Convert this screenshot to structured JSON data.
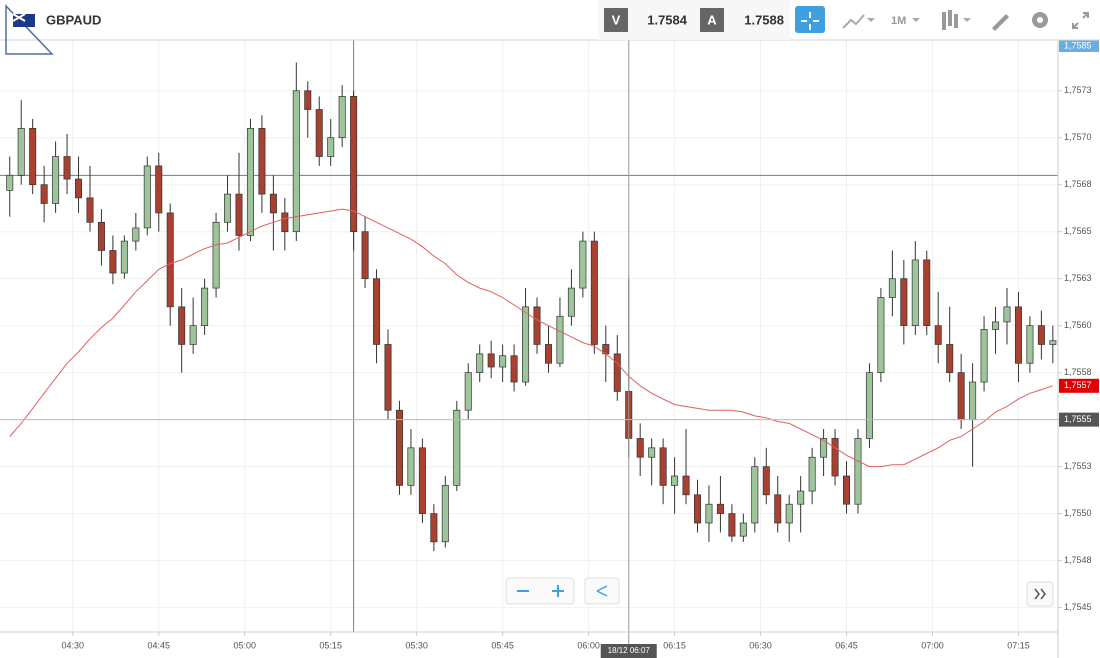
{
  "toolbar": {
    "symbol": "GBPAUD",
    "bid_label": "V",
    "bid": "1.7584",
    "ask_label": "A",
    "ask": "1.7588",
    "timeframe": "1M"
  },
  "chart_data": {
    "type": "candlestick",
    "x": [
      19,
      21,
      23,
      25,
      27,
      29,
      31,
      33,
      35,
      37,
      39,
      41,
      43,
      45,
      47,
      49,
      51,
      53,
      55,
      57,
      59,
      61,
      63,
      65,
      67,
      69,
      71,
      73,
      75,
      77,
      79,
      81,
      83,
      85,
      87,
      89,
      91,
      93,
      95,
      97,
      99,
      101,
      103,
      105,
      107,
      109,
      111,
      113,
      115,
      117,
      119,
      121,
      123,
      125,
      127,
      129,
      131,
      133,
      135,
      137,
      139,
      141,
      143,
      145,
      147,
      149,
      151,
      153,
      155,
      157,
      159,
      161,
      163,
      165,
      167,
      169,
      171,
      173,
      175,
      177,
      179,
      181,
      183,
      185,
      187,
      189,
      191,
      193,
      195,
      197,
      199,
      201
    ],
    "candles": [
      [
        1.75672,
        1.7569,
        1.75658,
        1.7568
      ],
      [
        1.7568,
        1.7572,
        1.75675,
        1.75705
      ],
      [
        1.75705,
        1.7571,
        1.7567,
        1.75675
      ],
      [
        1.75675,
        1.75685,
        1.75655,
        1.75665
      ],
      [
        1.75665,
        1.75698,
        1.7566,
        1.7569
      ],
      [
        1.7569,
        1.75702,
        1.7567,
        1.75678
      ],
      [
        1.75678,
        1.7569,
        1.7566,
        1.75668
      ],
      [
        1.75668,
        1.75685,
        1.7565,
        1.75655
      ],
      [
        1.75655,
        1.75662,
        1.75632,
        1.7564
      ],
      [
        1.7564,
        1.75648,
        1.75622,
        1.75628
      ],
      [
        1.75628,
        1.75648,
        1.75625,
        1.75645
      ],
      [
        1.75645,
        1.7566,
        1.7564,
        1.75652
      ],
      [
        1.75652,
        1.7569,
        1.75648,
        1.75685
      ],
      [
        1.75685,
        1.75692,
        1.7565,
        1.7566
      ],
      [
        1.7566,
        1.75665,
        1.756,
        1.7561
      ],
      [
        1.7561,
        1.7562,
        1.75575,
        1.7559
      ],
      [
        1.7559,
        1.75615,
        1.75585,
        1.756
      ],
      [
        1.756,
        1.75625,
        1.75595,
        1.7562
      ],
      [
        1.7562,
        1.7566,
        1.75615,
        1.75655
      ],
      [
        1.75655,
        1.7568,
        1.7565,
        1.7567
      ],
      [
        1.7567,
        1.75692,
        1.7564,
        1.75648
      ],
      [
        1.75648,
        1.7571,
        1.75645,
        1.75705
      ],
      [
        1.75705,
        1.75712,
        1.7566,
        1.7567
      ],
      [
        1.7567,
        1.7568,
        1.7564,
        1.7566
      ],
      [
        1.7566,
        1.75668,
        1.7564,
        1.7565
      ],
      [
        1.7565,
        1.7574,
        1.75645,
        1.75725
      ],
      [
        1.75725,
        1.7573,
        1.757,
        1.75715
      ],
      [
        1.75715,
        1.75722,
        1.75685,
        1.7569
      ],
      [
        1.7569,
        1.7571,
        1.75685,
        1.757
      ],
      [
        1.757,
        1.75728,
        1.75695,
        1.75722
      ],
      [
        1.75722,
        1.75725,
        1.7564,
        1.7565
      ],
      [
        1.7565,
        1.75658,
        1.7562,
        1.75625
      ],
      [
        1.75625,
        1.7563,
        1.7558,
        1.7559
      ],
      [
        1.7559,
        1.75598,
        1.7555,
        1.75555
      ],
      [
        1.75555,
        1.7556,
        1.7551,
        1.75515
      ],
      [
        1.75515,
        1.75545,
        1.7551,
        1.75535
      ],
      [
        1.75535,
        1.7554,
        1.75495,
        1.755
      ],
      [
        1.755,
        1.75505,
        1.7548,
        1.75485
      ],
      [
        1.75485,
        1.7552,
        1.75482,
        1.75515
      ],
      [
        1.75515,
        1.7556,
        1.75512,
        1.75555
      ],
      [
        1.75555,
        1.7558,
        1.7555,
        1.75575
      ],
      [
        1.75575,
        1.7559,
        1.7557,
        1.75585
      ],
      [
        1.75585,
        1.75592,
        1.75572,
        1.75578
      ],
      [
        1.75578,
        1.7559,
        1.7557,
        1.75584
      ],
      [
        1.75584,
        1.7559,
        1.75565,
        1.7557
      ],
      [
        1.7557,
        1.7562,
        1.75568,
        1.7561
      ],
      [
        1.7561,
        1.75615,
        1.75585,
        1.7559
      ],
      [
        1.7559,
        1.756,
        1.75575,
        1.7558
      ],
      [
        1.7558,
        1.75615,
        1.75578,
        1.75605
      ],
      [
        1.75605,
        1.7563,
        1.756,
        1.7562
      ],
      [
        1.7562,
        1.7565,
        1.75615,
        1.75645
      ],
      [
        1.75645,
        1.7565,
        1.75585,
        1.7559
      ],
      [
        1.7559,
        1.756,
        1.7557,
        1.75585
      ],
      [
        1.75585,
        1.75595,
        1.7556,
        1.75565
      ],
      [
        1.75565,
        1.75625,
        1.7553,
        1.7554
      ],
      [
        1.7554,
        1.75548,
        1.7552,
        1.7553
      ],
      [
        1.7553,
        1.7554,
        1.75515,
        1.75535
      ],
      [
        1.75535,
        1.7554,
        1.75505,
        1.75515
      ],
      [
        1.75515,
        1.7553,
        1.755,
        1.7552
      ],
      [
        1.7552,
        1.75545,
        1.75505,
        1.7551
      ],
      [
        1.7551,
        1.75518,
        1.7549,
        1.75495
      ],
      [
        1.75495,
        1.75515,
        1.75485,
        1.75505
      ],
      [
        1.75505,
        1.7552,
        1.7549,
        1.755
      ],
      [
        1.755,
        1.75505,
        1.75485,
        1.75488
      ],
      [
        1.75488,
        1.755,
        1.75485,
        1.75495
      ],
      [
        1.75495,
        1.7553,
        1.7549,
        1.75525
      ],
      [
        1.75525,
        1.75535,
        1.75505,
        1.7551
      ],
      [
        1.7551,
        1.7552,
        1.7549,
        1.75495
      ],
      [
        1.75495,
        1.7551,
        1.75485,
        1.75505
      ],
      [
        1.75505,
        1.7552,
        1.7549,
        1.75512
      ],
      [
        1.75512,
        1.75535,
        1.75505,
        1.7553
      ],
      [
        1.7553,
        1.75545,
        1.7552,
        1.7554
      ],
      [
        1.7554,
        1.75545,
        1.75515,
        1.7552
      ],
      [
        1.7552,
        1.75528,
        1.755,
        1.75505
      ],
      [
        1.75505,
        1.75545,
        1.755,
        1.7554
      ],
      [
        1.7554,
        1.7558,
        1.75535,
        1.75575
      ],
      [
        1.75575,
        1.7562,
        1.7557,
        1.75615
      ],
      [
        1.75615,
        1.7564,
        1.75605,
        1.75625
      ],
      [
        1.75625,
        1.75635,
        1.7559,
        1.756
      ],
      [
        1.756,
        1.75645,
        1.75595,
        1.75635
      ],
      [
        1.75635,
        1.7564,
        1.75595,
        1.756
      ],
      [
        1.756,
        1.75618,
        1.7558,
        1.7559
      ],
      [
        1.7559,
        1.7561,
        1.7557,
        1.75575
      ],
      [
        1.75575,
        1.75585,
        1.75545,
        1.7555
      ],
      [
        1.7555,
        1.7558,
        1.75525,
        1.7557
      ],
      [
        1.7557,
        1.75605,
        1.75565,
        1.75598
      ],
      [
        1.75598,
        1.7561,
        1.75585,
        1.75602
      ],
      [
        1.75602,
        1.7562,
        1.7559,
        1.7561
      ],
      [
        1.7561,
        1.75618,
        1.7557,
        1.7558
      ],
      [
        1.7558,
        1.75605,
        1.75575,
        1.756
      ],
      [
        1.756,
        1.75608,
        1.75582,
        1.7559
      ],
      [
        1.7559,
        1.756,
        1.7558,
        1.75592
      ]
    ],
    "up_color": "#9dc49b",
    "down_color": "#a8412f",
    "ma": {
      "color": "#e06060",
      "values": [
        1.75541,
        1.75548,
        1.75556,
        1.75564,
        1.75572,
        1.7558,
        1.75586,
        1.75593,
        1.75599,
        1.75604,
        1.75611,
        1.75618,
        1.75624,
        1.7563,
        1.75633,
        1.75635,
        1.75638,
        1.75641,
        1.75643,
        1.75644,
        1.75647,
        1.7565,
        1.75653,
        1.75655,
        1.75657,
        1.75658,
        1.75659,
        1.7566,
        1.75661,
        1.75662,
        1.75661,
        1.75658,
        1.75655,
        1.75652,
        1.75649,
        1.75646,
        1.75642,
        1.75637,
        1.75633,
        1.75627,
        1.75623,
        1.7562,
        1.75618,
        1.75615,
        1.75611,
        1.75607,
        1.75603,
        1.756,
        1.75597,
        1.75594,
        1.75591,
        1.75589,
        1.75585,
        1.7558,
        1.75573,
        1.75568,
        1.75564,
        1.75561,
        1.75558,
        1.75557,
        1.75556,
        1.75555,
        1.75555,
        1.75555,
        1.75554,
        1.75552,
        1.75551,
        1.75549,
        1.75548,
        1.75545,
        1.75542,
        1.75539,
        1.75535,
        1.75531,
        1.75528,
        1.75525,
        1.75525,
        1.75526,
        1.75526,
        1.75529,
        1.75532,
        1.75535,
        1.75539,
        1.75541,
        1.75545,
        1.75549,
        1.75554,
        1.75557,
        1.75561,
        1.75564,
        1.75566,
        1.75568
      ]
    },
    "xlim": [
      17.3,
      201.9
    ],
    "xticks": [
      {
        "value": 30,
        "label": "04:30"
      },
      {
        "value": 45,
        "label": "04:45"
      },
      {
        "value": 60,
        "label": "05:00"
      },
      {
        "value": 75,
        "label": "05:15"
      },
      {
        "value": 90,
        "label": "05:30"
      },
      {
        "value": 105,
        "label": "05:45"
      },
      {
        "value": 120,
        "label": "06:00"
      },
      {
        "value": 135,
        "label": "06:15"
      },
      {
        "value": 150,
        "label": "06:30"
      },
      {
        "value": 165,
        "label": "06:45"
      },
      {
        "value": 180,
        "label": "07:00"
      },
      {
        "value": 195,
        "label": "07:15"
      }
    ],
    "ylim": [
      1.75437,
      1.75752
    ],
    "yticks": [
      {
        "value": 1.75725,
        "label": "1,7573"
      },
      {
        "value": 1.757,
        "label": "1,7570"
      },
      {
        "value": 1.75675,
        "label": "1,7568"
      },
      {
        "value": 1.7565,
        "label": "1,7565"
      },
      {
        "value": 1.75625,
        "label": "1,7563"
      },
      {
        "value": 1.756,
        "label": "1,7560"
      },
      {
        "value": 1.75575,
        "label": "1,7558"
      },
      {
        "value": 1.7555,
        "label": "1,7555"
      },
      {
        "value": 1.75525,
        "label": "1,7553"
      },
      {
        "value": 1.755,
        "label": "1,7550"
      },
      {
        "value": 1.75475,
        "label": "1,7548"
      },
      {
        "value": 1.7545,
        "label": "1,7545"
      }
    ],
    "grid": true,
    "top_label": "1,7585",
    "last_price": {
      "value": 1.75568,
      "label": "1,7557"
    },
    "crosshair": {
      "price": 1.7555,
      "price_label": "1,7555",
      "time": 127,
      "time_label": "18/12 06:07"
    },
    "guide_lines": {
      "time": 79,
      "price": 1.7568
    }
  }
}
